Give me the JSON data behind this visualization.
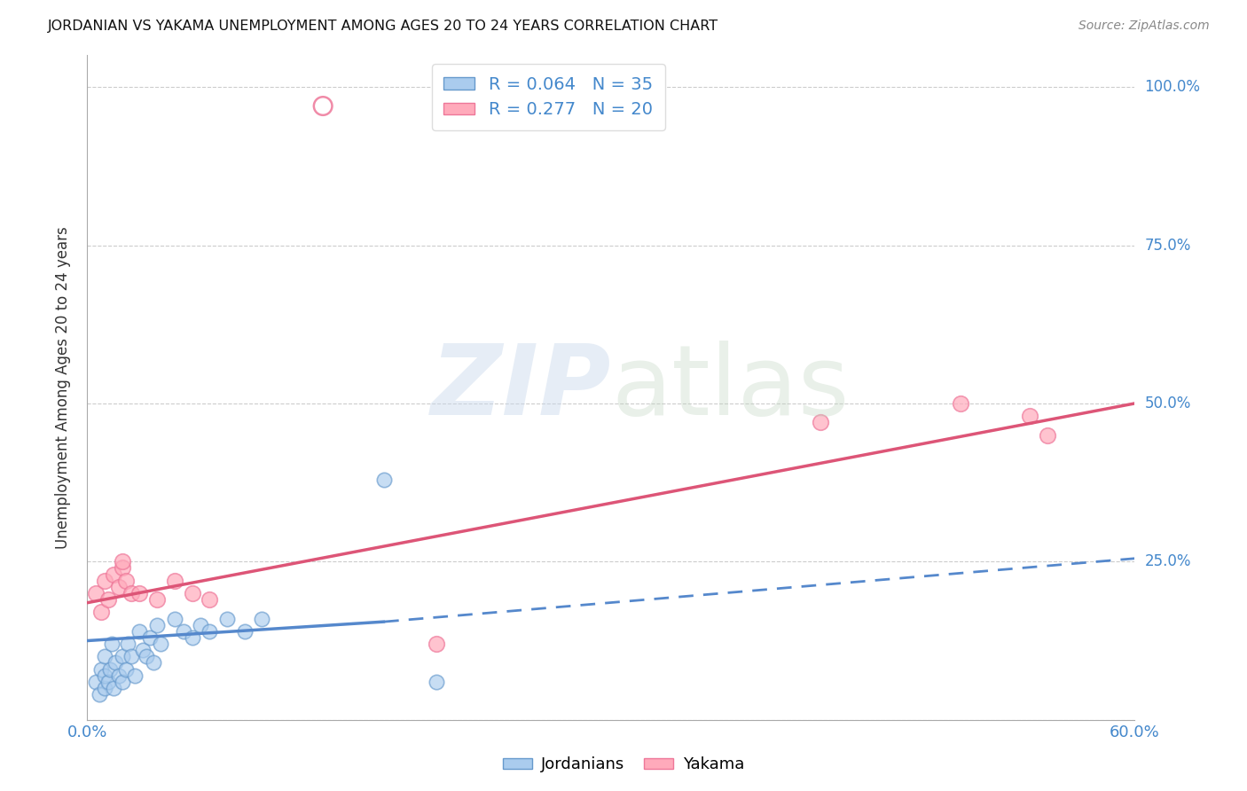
{
  "title": "JORDANIAN VS YAKAMA UNEMPLOYMENT AMONG AGES 20 TO 24 YEARS CORRELATION CHART",
  "source": "Source: ZipAtlas.com",
  "ylabel": "Unemployment Among Ages 20 to 24 years",
  "xlim": [
    0.0,
    0.6
  ],
  "ylim": [
    0.0,
    1.05
  ],
  "ytick_positions": [
    0.0,
    0.25,
    0.5,
    0.75,
    1.0
  ],
  "grid_color": "#cccccc",
  "background_color": "#ffffff",
  "blue_color": "#6699cc",
  "pink_color": "#ee7799",
  "blue_fill": "#aaccee",
  "pink_fill": "#ffaabb",
  "legend_blue_label": "R = 0.064   N = 35",
  "legend_pink_label": "R = 0.277   N = 20",
  "jordanians_label": "Jordanians",
  "yakama_label": "Yakama",
  "jordanian_x": [
    0.005,
    0.007,
    0.008,
    0.01,
    0.01,
    0.01,
    0.012,
    0.013,
    0.014,
    0.015,
    0.016,
    0.018,
    0.02,
    0.02,
    0.022,
    0.023,
    0.025,
    0.027,
    0.03,
    0.032,
    0.034,
    0.036,
    0.038,
    0.04,
    0.042,
    0.05,
    0.055,
    0.06,
    0.065,
    0.07,
    0.08,
    0.09,
    0.1,
    0.17,
    0.2
  ],
  "jordanian_y": [
    0.06,
    0.04,
    0.08,
    0.05,
    0.07,
    0.1,
    0.06,
    0.08,
    0.12,
    0.05,
    0.09,
    0.07,
    0.1,
    0.06,
    0.08,
    0.12,
    0.1,
    0.07,
    0.14,
    0.11,
    0.1,
    0.13,
    0.09,
    0.15,
    0.12,
    0.16,
    0.14,
    0.13,
    0.15,
    0.14,
    0.16,
    0.14,
    0.16,
    0.38,
    0.06
  ],
  "jordanian_outlier_x": [
    0.135
  ],
  "jordanian_outlier_y": [
    0.97
  ],
  "yakama_x": [
    0.005,
    0.008,
    0.01,
    0.012,
    0.015,
    0.018,
    0.02,
    0.022,
    0.025,
    0.03,
    0.04,
    0.05,
    0.06,
    0.07,
    0.2,
    0.42,
    0.5,
    0.54,
    0.55,
    0.02
  ],
  "yakama_y": [
    0.2,
    0.17,
    0.22,
    0.19,
    0.23,
    0.21,
    0.24,
    0.22,
    0.2,
    0.2,
    0.19,
    0.22,
    0.2,
    0.19,
    0.12,
    0.47,
    0.5,
    0.48,
    0.45,
    0.25
  ],
  "trendline_blue_color": "#5588cc",
  "trendline_pink_color": "#dd5577",
  "trendline_pink_start_x": 0.0,
  "trendline_pink_end_x": 0.6,
  "trendline_pink_start_y": 0.185,
  "trendline_pink_end_y": 0.5,
  "trendline_blue_solid_start_x": 0.0,
  "trendline_blue_solid_end_x": 0.17,
  "trendline_blue_solid_start_y": 0.125,
  "trendline_blue_solid_end_y": 0.155,
  "trendline_blue_dash_start_x": 0.17,
  "trendline_blue_dash_end_x": 0.6,
  "trendline_blue_dash_start_y": 0.155,
  "trendline_blue_dash_end_y": 0.255
}
